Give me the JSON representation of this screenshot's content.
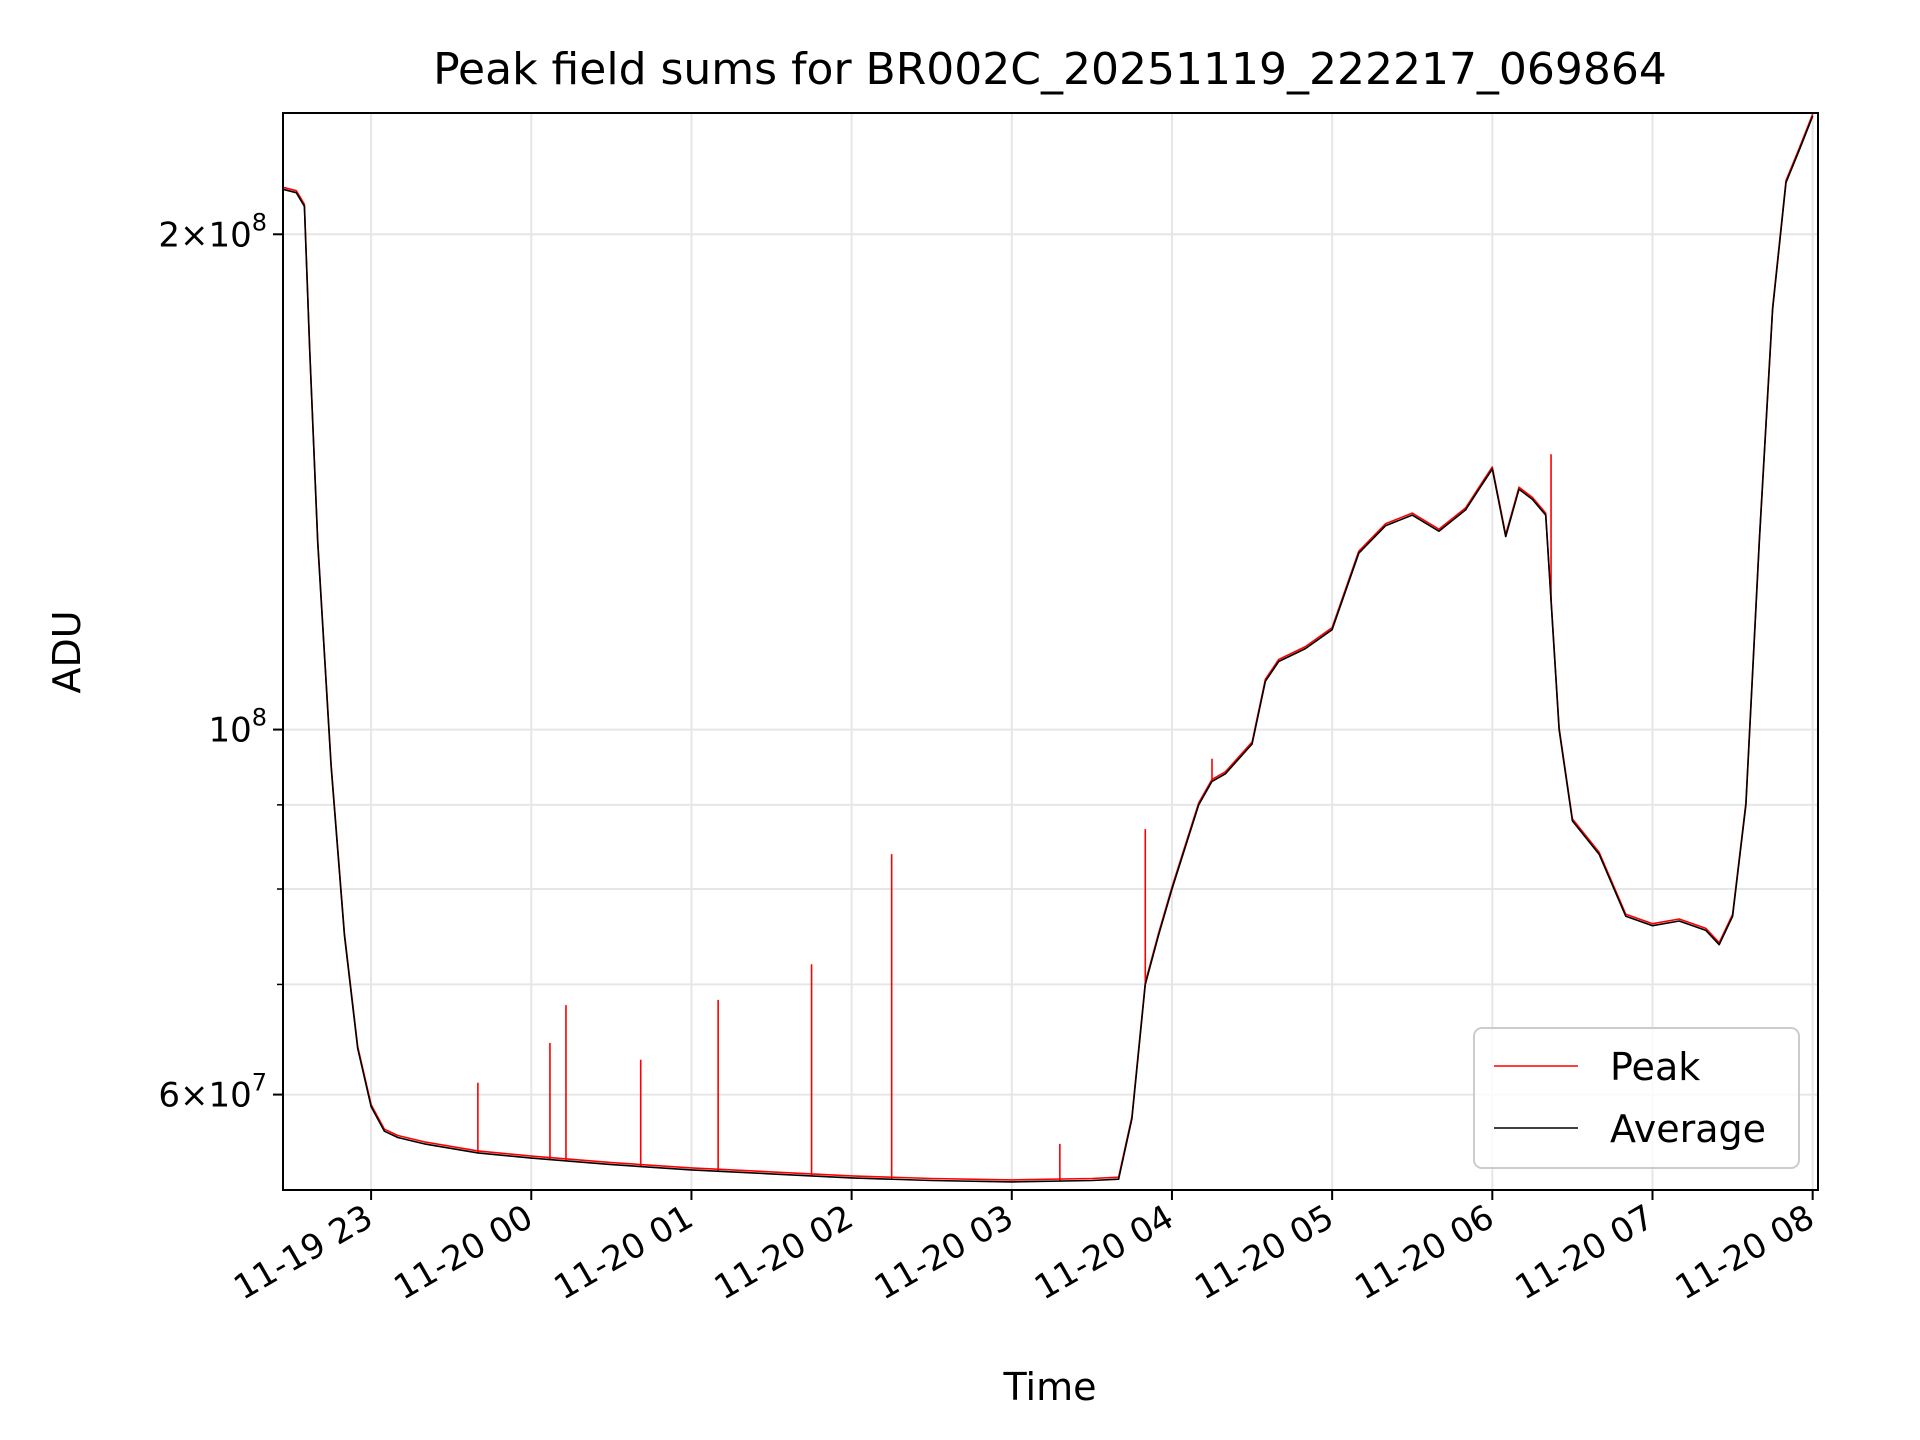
{
  "chart_data": {
    "type": "line",
    "title": "Peak field sums for BR002C_20251119_222217_069864",
    "xlabel": "Time",
    "ylabel": "ADU",
    "y_scale": "log",
    "xlim": [
      "2025-11-19 22:27",
      "2025-11-20 08:02"
    ],
    "ylim": [
      52500000,
      237000000
    ],
    "grid": true,
    "legend_position": "lower-right",
    "x_ticks": [
      "11-19 23",
      "11-20 00",
      "11-20 01",
      "11-20 02",
      "11-20 03",
      "11-20 04",
      "11-20 05",
      "11-20 06",
      "11-20 07",
      "11-20 08"
    ],
    "y_ticks_major": [
      {
        "value": 60000000,
        "mantissa": "6",
        "exponent": "7"
      },
      {
        "value": 100000000,
        "mantissa": "",
        "exponent": "8"
      },
      {
        "value": 200000000,
        "mantissa": "2",
        "exponent": "8"
      }
    ],
    "y_ticks_minor": [
      70000000,
      80000000,
      90000000
    ],
    "series": [
      {
        "name": "Average",
        "color": "#000000",
        "x": [
          "2025-11-19 22:27",
          "2025-11-19 22:32",
          "2025-11-19 22:35",
          "2025-11-19 22:37",
          "2025-11-19 22:40",
          "2025-11-19 22:45",
          "2025-11-19 22:50",
          "2025-11-19 22:55",
          "2025-11-19 23:00",
          "2025-11-19 23:05",
          "2025-11-19 23:10",
          "2025-11-19 23:20",
          "2025-11-19 23:40",
          "2025-11-20 00:00",
          "2025-11-20 00:30",
          "2025-11-20 01:00",
          "2025-11-20 01:30",
          "2025-11-20 02:00",
          "2025-11-20 02:30",
          "2025-11-20 03:00",
          "2025-11-20 03:30",
          "2025-11-20 03:40",
          "2025-11-20 03:45",
          "2025-11-20 03:50",
          "2025-11-20 03:55",
          "2025-11-20 04:00",
          "2025-11-20 04:10",
          "2025-11-20 04:15",
          "2025-11-20 04:20",
          "2025-11-20 04:30",
          "2025-11-20 04:35",
          "2025-11-20 04:40",
          "2025-11-20 04:50",
          "2025-11-20 05:00",
          "2025-11-20 05:10",
          "2025-11-20 05:20",
          "2025-11-20 05:30",
          "2025-11-20 05:40",
          "2025-11-20 05:50",
          "2025-11-20 05:55",
          "2025-11-20 06:00",
          "2025-11-20 06:05",
          "2025-11-20 06:10",
          "2025-11-20 06:15",
          "2025-11-20 06:20",
          "2025-11-20 06:25",
          "2025-11-20 06:30",
          "2025-11-20 06:40",
          "2025-11-20 06:50",
          "2025-11-20 07:00",
          "2025-11-20 07:10",
          "2025-11-20 07:20",
          "2025-11-20 07:25",
          "2025-11-20 07:30",
          "2025-11-20 07:35",
          "2025-11-20 07:40",
          "2025-11-20 07:45",
          "2025-11-20 07:50",
          "2025-11-20 07:55",
          "2025-11-20 08:00"
        ],
        "y": [
          213000000,
          212000000,
          208000000,
          170000000,
          130000000,
          95000000,
          75000000,
          64000000,
          59000000,
          57000000,
          56500000,
          56000000,
          55300000,
          54900000,
          54400000,
          54000000,
          53700000,
          53400000,
          53200000,
          53100000,
          53200000,
          53300000,
          58000000,
          70000000,
          75000000,
          80000000,
          90000000,
          93000000,
          94000000,
          98000000,
          107000000,
          110000000,
          112000000,
          115000000,
          128000000,
          133000000,
          135000000,
          132000000,
          136000000,
          140000000,
          144000000,
          131000000,
          140000000,
          138000000,
          135000000,
          100000000,
          88000000,
          84000000,
          77000000,
          76000000,
          76500000,
          75500000,
          74000000,
          77000000,
          90000000,
          130000000,
          180000000,
          215000000,
          225000000,
          236000000
        ]
      },
      {
        "name": "Peak",
        "color": "#ff0000",
        "spikes": [
          {
            "x": "2025-11-19 23:40",
            "y": 61000000
          },
          {
            "x": "2025-11-20 00:07",
            "y": 64500000
          },
          {
            "x": "2025-11-20 00:13",
            "y": 68000000
          },
          {
            "x": "2025-11-20 00:41",
            "y": 63000000
          },
          {
            "x": "2025-11-20 01:10",
            "y": 68500000
          },
          {
            "x": "2025-11-20 01:45",
            "y": 72000000
          },
          {
            "x": "2025-11-20 02:15",
            "y": 84000000
          },
          {
            "x": "2025-11-20 03:18",
            "y": 56000000
          },
          {
            "x": "2025-11-20 03:50",
            "y": 87000000
          },
          {
            "x": "2025-11-20 04:15",
            "y": 96000000
          },
          {
            "x": "2025-11-20 06:22",
            "y": 147000000
          }
        ]
      }
    ]
  }
}
